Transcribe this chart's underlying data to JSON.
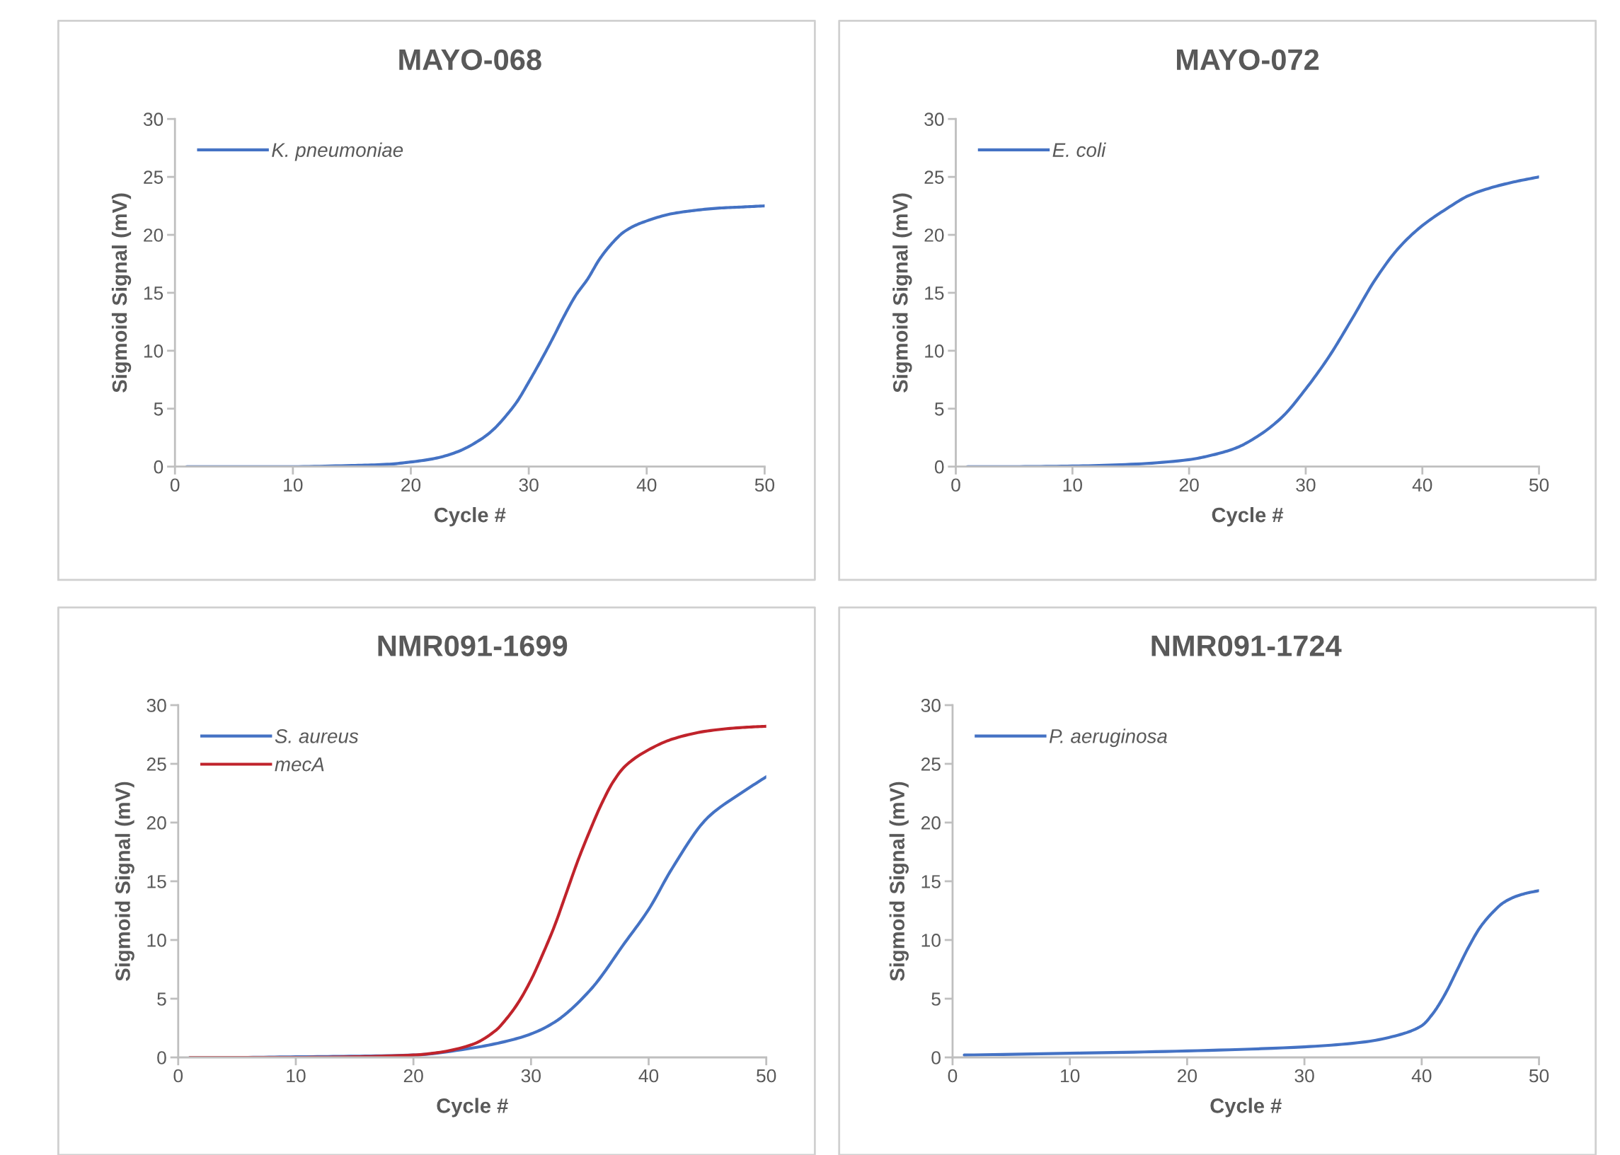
{
  "chart_data": [
    {
      "type": "line",
      "title": "MAYO-068",
      "xlabel": "Cycle #",
      "ylabel": "Sigmoid Signal (mV)",
      "xlim": [
        0,
        50
      ],
      "xticks": [
        0,
        10,
        20,
        30,
        40,
        50
      ],
      "ylim": [
        0,
        30
      ],
      "yticks": [
        0,
        5,
        10,
        15,
        20,
        25,
        30
      ],
      "grid": false,
      "legend": "top left",
      "marker": "none",
      "line_style": "solid",
      "series": [
        {
          "name": "K. pneumoniae",
          "color": "#4472c4",
          "x": [
            1,
            5,
            10,
            15,
            18,
            20,
            22,
            24,
            26,
            27,
            28,
            29,
            30,
            31,
            32,
            33,
            34,
            35,
            36,
            37,
            38,
            39,
            40,
            42,
            44,
            46,
            48,
            50
          ],
          "values": [
            0,
            0,
            0,
            0.1,
            0.2,
            0.4,
            0.7,
            1.3,
            2.4,
            3.2,
            4.3,
            5.6,
            7.3,
            9.1,
            11.0,
            13.0,
            14.8,
            16.2,
            17.9,
            19.2,
            20.2,
            20.8,
            21.2,
            21.8,
            22.1,
            22.3,
            22.4,
            22.5
          ]
        }
      ]
    },
    {
      "type": "line",
      "title": "MAYO-072",
      "xlabel": "Cycle #",
      "ylabel": "Sigmoid Signal (mV)",
      "xlim": [
        0,
        50
      ],
      "xticks": [
        0,
        10,
        20,
        30,
        40,
        50
      ],
      "ylim": [
        0,
        30
      ],
      "yticks": [
        0,
        5,
        10,
        15,
        20,
        25,
        30
      ],
      "grid": false,
      "legend": "top left",
      "marker": "none",
      "line_style": "solid",
      "series": [
        {
          "name": "E. coli",
          "color": "#4472c4",
          "x": [
            1,
            5,
            10,
            15,
            20,
            22,
            24,
            26,
            28,
            30,
            32,
            34,
            36,
            38,
            40,
            42,
            44,
            46,
            48,
            50
          ],
          "values": [
            0,
            0,
            0.05,
            0.2,
            0.6,
            1.0,
            1.6,
            2.7,
            4.3,
            6.7,
            9.5,
            12.8,
            16.2,
            18.9,
            20.8,
            22.2,
            23.4,
            24.1,
            24.6,
            25.0
          ]
        }
      ]
    },
    {
      "type": "line",
      "title": "NMR091-1699",
      "xlabel": "Cycle #",
      "ylabel": "Sigmoid Signal (mV)",
      "xlim": [
        0,
        50
      ],
      "xticks": [
        0,
        10,
        20,
        30,
        40,
        50
      ],
      "ylim": [
        0,
        30
      ],
      "yticks": [
        0,
        5,
        10,
        15,
        20,
        25,
        30
      ],
      "grid": false,
      "legend": "top left",
      "marker": "none",
      "line_style": "solid",
      "series": [
        {
          "name": "S. aureus",
          "color": "#4472c4",
          "x": [
            1,
            5,
            10,
            15,
            20,
            25,
            28,
            30,
            32,
            35,
            38,
            40,
            42,
            45,
            48,
            50
          ],
          "values": [
            0,
            0,
            0.05,
            0.1,
            0.2,
            0.8,
            1.4,
            2.0,
            3.0,
            5.7,
            9.8,
            12.6,
            16.1,
            20.4,
            22.6,
            23.9
          ]
        },
        {
          "name": "mecA",
          "color": "#c0232b",
          "x": [
            1,
            5,
            10,
            15,
            20,
            22,
            25,
            27,
            28,
            29,
            30,
            31,
            32,
            33,
            34,
            35,
            36,
            37,
            38,
            40,
            42,
            45,
            48,
            50
          ],
          "values": [
            0,
            0,
            0,
            0.05,
            0.2,
            0.4,
            1.1,
            2.3,
            3.4,
            4.8,
            6.6,
            8.8,
            11.2,
            14.0,
            16.8,
            19.3,
            21.6,
            23.5,
            24.8,
            26.2,
            27.1,
            27.8,
            28.1,
            28.2
          ]
        }
      ]
    },
    {
      "type": "line",
      "title": "NMR091-1724",
      "xlabel": "Cycle #",
      "ylabel": "Sigmoid Signal (mV)",
      "xlim": [
        0,
        50
      ],
      "xticks": [
        0,
        10,
        20,
        30,
        40,
        50
      ],
      "ylim": [
        0,
        30
      ],
      "yticks": [
        0,
        5,
        10,
        15,
        20,
        25,
        30
      ],
      "grid": false,
      "legend": "top left",
      "marker": "none",
      "line_style": "solid",
      "series": [
        {
          "name": "P. aeruginosa",
          "color": "#4472c4",
          "x": [
            1,
            10,
            20,
            30,
            35,
            38,
            40,
            41,
            42,
            43,
            44,
            45,
            46,
            47,
            48,
            49,
            50
          ],
          "values": [
            0.2,
            0.35,
            0.55,
            0.9,
            1.3,
            1.9,
            2.7,
            3.8,
            5.4,
            7.4,
            9.4,
            11.1,
            12.3,
            13.2,
            13.7,
            14.0,
            14.2
          ]
        }
      ]
    }
  ]
}
